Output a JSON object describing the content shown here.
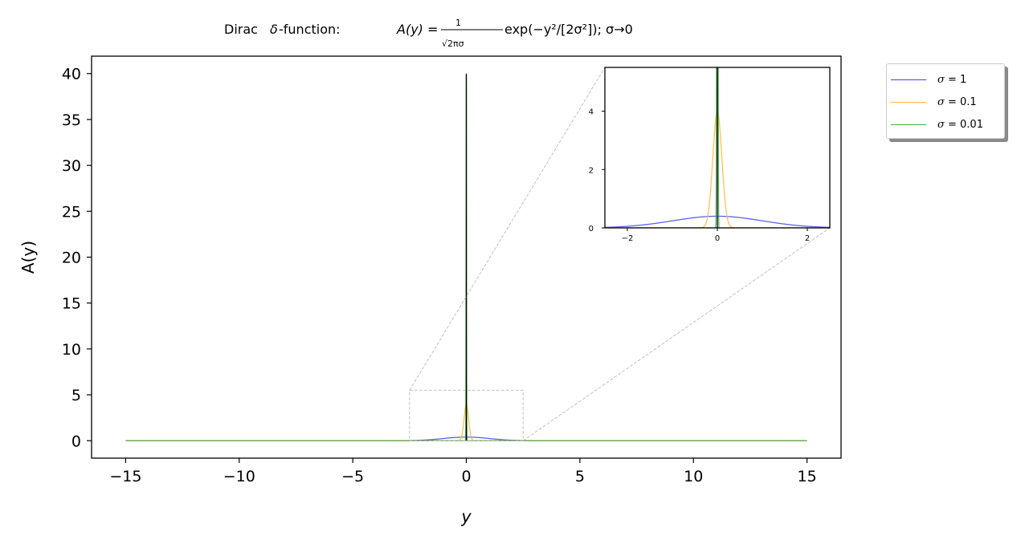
{
  "chart_data": [
    {
      "type": "line",
      "title": "Dirac δ-function: A(y) = (1/(√(2π)σ)) exp(−y²/[2σ²]); σ→0",
      "xlabel": "y",
      "ylabel": "A(y)",
      "xlim": [
        -16.5,
        16.5
      ],
      "ylim": [
        -1.9,
        41.9
      ],
      "xticks": [
        -15,
        -10,
        -5,
        0,
        5,
        10,
        15
      ],
      "xtick_labels": [
        "−15",
        "−10",
        "−5",
        "0",
        "5",
        "10",
        "15"
      ],
      "yticks": [
        0,
        5,
        10,
        15,
        20,
        25,
        30,
        35,
        40
      ],
      "ytick_labels": [
        "0",
        "5",
        "10",
        "15",
        "20",
        "25",
        "30",
        "35",
        "40"
      ],
      "x_range": [
        -15,
        15
      ],
      "series": [
        {
          "name": "σ = 1",
          "sigma": 1,
          "color": "#4444ee",
          "peak": 0.399
        },
        {
          "name": "σ = 0.1",
          "sigma": 0.1,
          "color": "#ffb733",
          "peak": 3.99
        },
        {
          "name": "σ = 0.01",
          "sigma": 0.01,
          "color": "#44aa44",
          "peak": 39.9
        }
      ],
      "vline_x": 0,
      "zoom_box": {
        "xlim": [
          -2.5,
          2.5
        ],
        "ylim": [
          0,
          5.5
        ]
      },
      "legend": "outside-upper-right",
      "grid": false
    },
    {
      "type": "line",
      "inset": true,
      "xlim": [
        -2.5,
        2.5
      ],
      "ylim": [
        0,
        5.5
      ],
      "xticks": [
        -2,
        0,
        2
      ],
      "xtick_labels": [
        "−2",
        "0",
        "2"
      ],
      "yticks": [
        0,
        2,
        4
      ],
      "ytick_labels": [
        "0",
        "2",
        "4"
      ],
      "series": [
        {
          "name": "σ = 1",
          "sigma": 1,
          "color": "#4444ee"
        },
        {
          "name": "σ = 0.1",
          "sigma": 0.1,
          "color": "#ffb733"
        },
        {
          "name": "σ = 0.01",
          "sigma": 0.01,
          "color": "#44aa44"
        }
      ],
      "vline_x": 0
    }
  ],
  "legend_items": [
    {
      "symbol": "σ",
      "eq": " = 1",
      "color": "#4444ee"
    },
    {
      "symbol": "σ",
      "eq": " = 0.1",
      "color": "#ffb733"
    },
    {
      "symbol": "σ",
      "eq": " = 0.01",
      "color": "#44aa44"
    }
  ]
}
